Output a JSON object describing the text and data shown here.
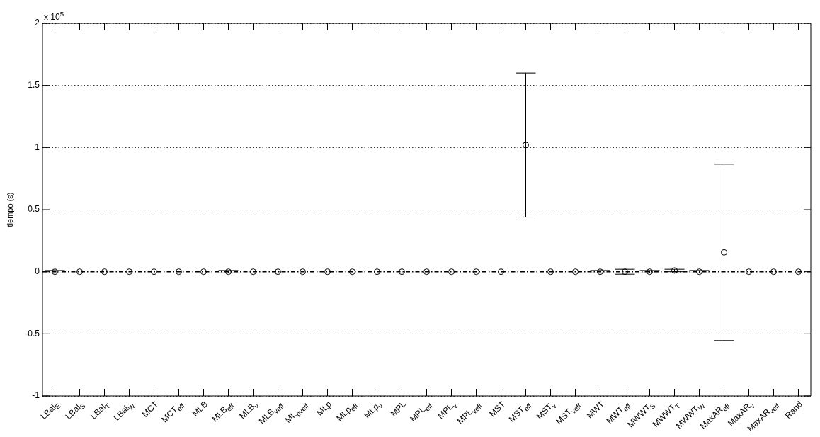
{
  "chart_data": {
    "type": "scatter",
    "ylabel": "tiempo (s)",
    "annotations": [
      "x 10$^{5}$"
    ],
    "categories": [
      "LBal$_{E}$",
      "LBal$_{S}$",
      "LBal$_{T}$",
      "LBal$_{W}$",
      "MCT",
      "MCT$_{eff}$",
      "MLB",
      "MLB$_{eff}$",
      "MLB$_{v}$",
      "MLB$_{veff}$",
      "ML$_{pveff}$",
      "MLp",
      "MLp$_{eff}$",
      "MLp$_{v}$",
      "MPL",
      "MPL$_{eff}$",
      "MPL$_{v}$",
      "MPL$_{veff}$",
      "MST",
      "MST$_{eff}$",
      "MST$_{v}$",
      "MST$_{veff}$",
      "MWT",
      "MWT$_{eff}$",
      "MWWT$_{S}$",
      "MWWT$_{T}$",
      "MWWT$_{W}$",
      "MaxAR$_{eff}$",
      "MaxAR$_{v}$",
      "MaxAR$_{veff}$",
      "Rand"
    ],
    "series": [
      {
        "color": "#000000",
        "values": [
          0,
          0,
          0,
          0,
          0,
          0,
          0,
          0,
          0,
          0,
          0,
          0,
          0,
          0,
          0,
          0,
          0,
          0,
          0,
          1.02,
          0,
          0,
          0,
          0,
          0,
          0.01,
          0,
          0.156,
          0,
          0,
          0
        ],
        "errors": [
          0.01,
          null,
          null,
          null,
          null,
          null,
          null,
          0.01,
          null,
          null,
          null,
          null,
          null,
          null,
          null,
          null,
          null,
          null,
          null,
          0.58,
          null,
          null,
          0.01,
          0.02,
          0.01,
          0.01,
          0.01,
          0.71,
          null,
          null,
          null
        ]
      }
    ],
    "marker": "circle",
    "grid": "y",
    "ylim": [
      -1,
      2
    ],
    "yticks": [
      -1,
      -0.5,
      0,
      0.5,
      1,
      1.5,
      2
    ],
    "ref_lines": [
      {
        "axis": "y",
        "value": 0,
        "line_style": "dashed",
        "color": "#000000"
      }
    ]
  }
}
